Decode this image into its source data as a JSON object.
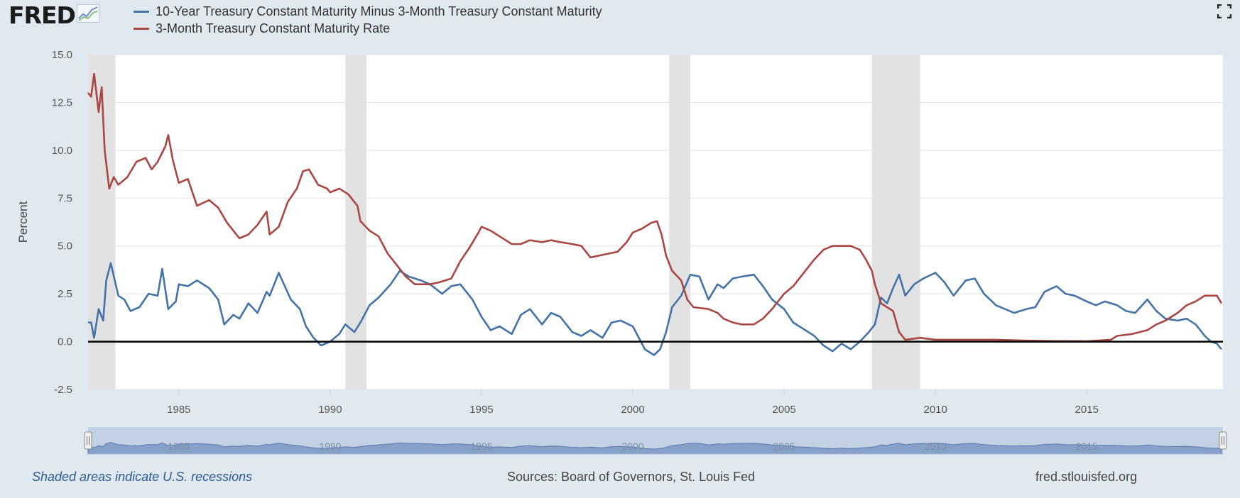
{
  "logo": {
    "text": "FRED",
    "icon": "fred-chart-logo-icon"
  },
  "legend": [
    {
      "label": "10-Year Treasury Constant Maturity Minus 3-Month Treasury Constant Maturity",
      "color": "#4572a7"
    },
    {
      "label": "3-Month Treasury Constant Maturity Rate",
      "color": "#aa4643"
    }
  ],
  "controls": {
    "fullscreen_icon": "fullscreen-icon"
  },
  "footer": {
    "recession_note": "Shaded areas indicate U.S. recessions",
    "sources": "Sources: Board of Governors, St. Louis Fed",
    "site": "fred.stlouisfed.org"
  },
  "chart_data": {
    "type": "line",
    "ylabel": "Percent",
    "ylim": [
      -2.5,
      15.0
    ],
    "xlim": [
      1982.0,
      2019.5
    ],
    "y_ticks": [
      "15.0",
      "12.5",
      "10.0",
      "7.5",
      "5.0",
      "2.5",
      "0.0",
      "-2.5"
    ],
    "x_ticks": [
      "1985",
      "1990",
      "1995",
      "2000",
      "2005",
      "2010",
      "2015"
    ],
    "zero_line": 0,
    "grid": true,
    "recessions": [
      [
        1982.0,
        1982.9
      ],
      [
        1990.5,
        1991.2
      ],
      [
        2001.2,
        2001.9
      ],
      [
        2007.9,
        2009.5
      ]
    ],
    "series": [
      {
        "name": "10-Year Treasury Constant Maturity Minus 3-Month Treasury Constant Maturity",
        "color": "#4572a7",
        "x": [
          1982.0,
          1982.1,
          1982.2,
          1982.35,
          1982.5,
          1982.6,
          1982.75,
          1983.0,
          1983.2,
          1983.4,
          1983.7,
          1984.0,
          1984.3,
          1984.45,
          1984.65,
          1984.9,
          1985.0,
          1985.3,
          1985.6,
          1986.0,
          1986.3,
          1986.5,
          1986.8,
          1987.0,
          1987.3,
          1987.6,
          1987.9,
          1988.0,
          1988.3,
          1988.7,
          1989.0,
          1989.2,
          1989.45,
          1989.7,
          1990.0,
          1990.3,
          1990.5,
          1990.8,
          1991.0,
          1991.3,
          1991.6,
          1992.0,
          1992.3,
          1992.6,
          1993.0,
          1993.3,
          1993.7,
          1994.0,
          1994.3,
          1994.7,
          1995.0,
          1995.3,
          1995.6,
          1996.0,
          1996.3,
          1996.6,
          1997.0,
          1997.3,
          1997.6,
          1998.0,
          1998.3,
          1998.6,
          1999.0,
          1999.3,
          1999.6,
          2000.0,
          2000.4,
          2000.7,
          2000.9,
          2001.1,
          2001.3,
          2001.6,
          2001.9,
          2002.2,
          2002.5,
          2002.8,
          2003.0,
          2003.3,
          2003.6,
          2004.0,
          2004.3,
          2004.6,
          2005.0,
          2005.3,
          2005.6,
          2006.0,
          2006.3,
          2006.6,
          2006.9,
          2007.2,
          2007.5,
          2007.8,
          2008.0,
          2008.2,
          2008.4,
          2008.6,
          2008.8,
          2009.0,
          2009.3,
          2009.6,
          2010.0,
          2010.3,
          2010.6,
          2011.0,
          2011.3,
          2011.6,
          2012.0,
          2012.3,
          2012.6,
          2013.0,
          2013.3,
          2013.6,
          2014.0,
          2014.3,
          2014.6,
          2015.0,
          2015.3,
          2015.6,
          2016.0,
          2016.3,
          2016.6,
          2017.0,
          2017.3,
          2017.6,
          2018.0,
          2018.3,
          2018.6,
          2018.9,
          2019.1,
          2019.3,
          2019.45
        ],
        "values": [
          1.0,
          1.0,
          0.2,
          1.7,
          1.1,
          3.2,
          4.1,
          2.4,
          2.2,
          1.6,
          1.8,
          2.5,
          2.4,
          3.8,
          1.7,
          2.1,
          3.0,
          2.9,
          3.2,
          2.8,
          2.2,
          0.9,
          1.4,
          1.2,
          2.0,
          1.5,
          2.6,
          2.4,
          3.6,
          2.2,
          1.7,
          0.8,
          0.2,
          -0.2,
          0.0,
          0.4,
          0.9,
          0.5,
          1.0,
          1.9,
          2.3,
          3.0,
          3.7,
          3.4,
          3.2,
          3.0,
          2.5,
          2.9,
          3.0,
          2.2,
          1.3,
          0.6,
          0.8,
          0.4,
          1.4,
          1.7,
          0.9,
          1.5,
          1.3,
          0.5,
          0.3,
          0.6,
          0.2,
          1.0,
          1.1,
          0.8,
          -0.4,
          -0.7,
          -0.4,
          0.5,
          1.8,
          2.4,
          3.5,
          3.4,
          2.2,
          3.0,
          2.8,
          3.3,
          3.4,
          3.5,
          2.9,
          2.2,
          1.7,
          1.0,
          0.7,
          0.3,
          -0.2,
          -0.5,
          -0.1,
          -0.4,
          0.0,
          0.5,
          0.9,
          2.3,
          2.0,
          2.8,
          3.5,
          2.4,
          3.0,
          3.3,
          3.6,
          3.1,
          2.4,
          3.2,
          3.3,
          2.5,
          1.9,
          1.7,
          1.5,
          1.7,
          1.8,
          2.6,
          2.9,
          2.5,
          2.4,
          2.1,
          1.9,
          2.1,
          1.9,
          1.6,
          1.5,
          2.2,
          1.6,
          1.2,
          1.1,
          1.2,
          0.9,
          0.3,
          0.0,
          -0.1,
          -0.4
        ]
      },
      {
        "name": "3-Month Treasury Constant Maturity Rate",
        "color": "#aa4643",
        "x": [
          1982.0,
          1982.1,
          1982.2,
          1982.35,
          1982.45,
          1982.55,
          1982.7,
          1982.85,
          1983.0,
          1983.3,
          1983.6,
          1983.9,
          1984.1,
          1984.3,
          1984.55,
          1984.65,
          1984.8,
          1985.0,
          1985.3,
          1985.6,
          1986.0,
          1986.3,
          1986.6,
          1986.8,
          1987.0,
          1987.3,
          1987.6,
          1987.9,
          1988.0,
          1988.3,
          1988.6,
          1988.9,
          1989.1,
          1989.3,
          1989.6,
          1989.9,
          1990.0,
          1990.3,
          1990.6,
          1990.9,
          1991.0,
          1991.3,
          1991.6,
          1991.9,
          1992.2,
          1992.5,
          1992.8,
          1993.0,
          1993.3,
          1993.6,
          1994.0,
          1994.3,
          1994.6,
          1994.9,
          1995.0,
          1995.3,
          1995.6,
          1996.0,
          1996.3,
          1996.6,
          1997.0,
          1997.3,
          1997.6,
          1998.0,
          1998.3,
          1998.6,
          1998.9,
          1999.2,
          1999.5,
          1999.8,
          2000.0,
          2000.3,
          2000.6,
          2000.8,
          2000.95,
          2001.1,
          2001.3,
          2001.6,
          2001.8,
          2002.0,
          2002.5,
          2002.8,
          2003.0,
          2003.3,
          2003.6,
          2004.0,
          2004.3,
          2004.6,
          2005.0,
          2005.3,
          2005.6,
          2006.0,
          2006.3,
          2006.6,
          2006.9,
          2007.2,
          2007.5,
          2007.7,
          2007.9,
          2008.0,
          2008.2,
          2008.4,
          2008.6,
          2008.8,
          2009.0,
          2009.5,
          2010.0,
          2011.0,
          2012.0,
          2013.0,
          2014.0,
          2015.0,
          2015.8,
          2016.0,
          2016.5,
          2017.0,
          2017.3,
          2017.6,
          2018.0,
          2018.3,
          2018.6,
          2018.9,
          2019.1,
          2019.3,
          2019.45
        ],
        "values": [
          13.0,
          12.8,
          14.0,
          12.0,
          13.3,
          10.0,
          8.0,
          8.6,
          8.2,
          8.6,
          9.4,
          9.6,
          9.0,
          9.4,
          10.2,
          10.8,
          9.5,
          8.3,
          8.5,
          7.1,
          7.4,
          7.0,
          6.2,
          5.8,
          5.4,
          5.6,
          6.1,
          6.8,
          5.6,
          6.0,
          7.3,
          8.0,
          8.9,
          9.0,
          8.2,
          8.0,
          7.8,
          8.0,
          7.7,
          7.1,
          6.3,
          5.8,
          5.5,
          4.6,
          4.0,
          3.4,
          3.0,
          3.0,
          3.0,
          3.1,
          3.3,
          4.2,
          4.9,
          5.7,
          6.0,
          5.8,
          5.5,
          5.1,
          5.1,
          5.3,
          5.2,
          5.3,
          5.2,
          5.1,
          5.0,
          4.4,
          4.5,
          4.6,
          4.7,
          5.2,
          5.7,
          5.9,
          6.2,
          6.3,
          5.6,
          4.5,
          3.7,
          3.2,
          2.2,
          1.8,
          1.7,
          1.5,
          1.2,
          1.0,
          0.9,
          0.9,
          1.2,
          1.7,
          2.5,
          2.9,
          3.5,
          4.3,
          4.8,
          5.0,
          5.0,
          5.0,
          4.8,
          4.3,
          3.7,
          3.0,
          2.0,
          1.8,
          1.6,
          0.5,
          0.1,
          0.2,
          0.1,
          0.1,
          0.1,
          0.05,
          0.03,
          0.02,
          0.1,
          0.3,
          0.4,
          0.6,
          0.9,
          1.1,
          1.5,
          1.9,
          2.1,
          2.4,
          2.4,
          2.4,
          2.0
        ]
      }
    ]
  }
}
